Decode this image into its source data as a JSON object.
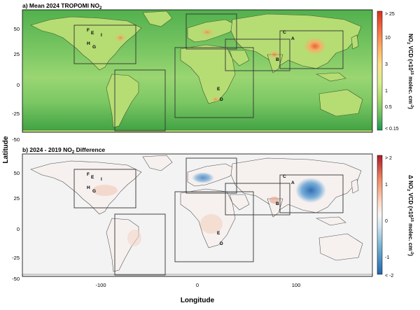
{
  "figure": {
    "x_axis_label": "Longitude",
    "y_axis_label": "Latitude",
    "x_ticks": [
      "-100",
      "0",
      "100"
    ],
    "y_ticks": [
      "50",
      "25",
      "0",
      "-25",
      "-50"
    ]
  },
  "panels": [
    {
      "title_prefix": "a) Mean 2024 TROPOMI NO",
      "title_sub": "2",
      "colorbar": {
        "ticks": [
          "> 25",
          "10",
          "3",
          "1",
          "0.5",
          "< 0.15"
        ],
        "colors": [
          "#d7301f",
          "#f46d43",
          "#fdae61",
          "#fee08b",
          "#d9ef8b",
          "#a6d96a",
          "#66bd63",
          "#1a9850"
        ],
        "label": {
          "a": "NO",
          "b": "2",
          "c": " VCD (×10",
          "d": "15",
          "e": " molec. cm",
          "f": "-2",
          "g": ")"
        }
      }
    },
    {
      "title_prefix": "b) 2024 - 2019 NO",
      "title_sub": "2",
      "title_suffix": " Difference",
      "colorbar": {
        "ticks": [
          "> 2",
          "1",
          "0",
          "-1",
          "< -2"
        ],
        "colors": [
          "#b2182b",
          "#ef8a62",
          "#fddbc7",
          "#f7f7f7",
          "#d1e5f0",
          "#67a9cf",
          "#2166ac"
        ],
        "label": {
          "a": "Δ NO",
          "b": "2",
          "c": " VCD (×10",
          "d": "15",
          "e": " molec. cm",
          "f": "-2",
          "g": ")"
        }
      }
    }
  ],
  "site_labels": [
    "F",
    "E",
    "I",
    "H",
    "G",
    "C",
    "A",
    "B",
    "E",
    "D"
  ],
  "colors": {
    "map_bg_a": "#5cb85a",
    "ocean_a": "#8fd06c",
    "land_a": "#c6e07c",
    "hotspot_a": "#f4a460",
    "map_bg_b": "#f2f2f2",
    "region_box": "#333333"
  }
}
